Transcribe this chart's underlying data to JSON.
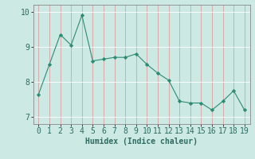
{
  "x": [
    0,
    1,
    2,
    3,
    4,
    5,
    6,
    7,
    8,
    9,
    10,
    11,
    12,
    13,
    14,
    15,
    16,
    17,
    18,
    19
  ],
  "y": [
    7.65,
    8.5,
    9.35,
    9.05,
    9.9,
    8.6,
    8.65,
    8.7,
    8.7,
    8.8,
    8.5,
    8.25,
    8.05,
    7.45,
    7.4,
    7.4,
    7.2,
    7.45,
    7.75,
    7.2
  ],
  "line_color": "#2e8b72",
  "marker_color": "#2e8b72",
  "bg_color": "#cce9e4",
  "grid_color_v": "#d9a0a0",
  "grid_color_h": "#ffffff",
  "xlabel": "Humidex (Indice chaleur)",
  "ylim": [
    6.8,
    10.2
  ],
  "xlim": [
    -0.5,
    19.5
  ],
  "yticks": [
    7,
    8,
    9,
    10
  ],
  "xticks": [
    0,
    1,
    2,
    3,
    4,
    5,
    6,
    7,
    8,
    9,
    10,
    11,
    12,
    13,
    14,
    15,
    16,
    17,
    18,
    19
  ],
  "label_fontsize": 7,
  "tick_fontsize": 7
}
